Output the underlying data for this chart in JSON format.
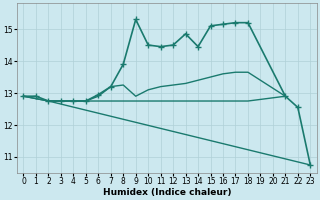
{
  "xlabel": "Humidex (Indice chaleur)",
  "bg_color": "#cce8ef",
  "grid_color": "#b0d0d8",
  "line_color": "#1a7a6e",
  "xlim": [
    -0.5,
    23.5
  ],
  "ylim": [
    10.5,
    15.8
  ],
  "yticks": [
    11,
    12,
    13,
    14,
    15
  ],
  "xticks": [
    0,
    1,
    2,
    3,
    4,
    5,
    6,
    7,
    8,
    9,
    10,
    11,
    12,
    13,
    14,
    15,
    16,
    17,
    18,
    19,
    20,
    21,
    22,
    23
  ],
  "series": [
    {
      "x": [
        0,
        1,
        2,
        3,
        4,
        5,
        6,
        7,
        8,
        9,
        10,
        11,
        12,
        13,
        14,
        15,
        16,
        17,
        18,
        21,
        22,
        23
      ],
      "y": [
        12.9,
        12.9,
        12.75,
        12.75,
        12.75,
        12.75,
        12.95,
        13.2,
        13.9,
        15.3,
        14.5,
        14.45,
        14.5,
        14.85,
        14.45,
        15.1,
        15.15,
        15.2,
        15.2,
        12.9,
        12.55,
        10.75
      ],
      "marker": "+",
      "markersize": 4,
      "linestyle": "-",
      "linewidth": 1.2
    },
    {
      "x": [
        0,
        2,
        3,
        4,
        5,
        6,
        7,
        8,
        9,
        10,
        11,
        12,
        13,
        14,
        15,
        16,
        17,
        18,
        21
      ],
      "y": [
        12.9,
        12.75,
        12.75,
        12.75,
        12.75,
        12.9,
        13.2,
        13.25,
        12.9,
        13.1,
        13.2,
        13.25,
        13.3,
        13.4,
        13.5,
        13.6,
        13.65,
        13.65,
        12.9
      ],
      "marker": null,
      "linestyle": "-",
      "linewidth": 1.0
    },
    {
      "x": [
        0,
        2,
        3,
        4,
        5,
        6,
        7,
        8,
        9,
        10,
        11,
        12,
        13,
        14,
        15,
        16,
        17,
        18,
        21
      ],
      "y": [
        12.9,
        12.75,
        12.75,
        12.75,
        12.75,
        12.75,
        12.75,
        12.75,
        12.75,
        12.75,
        12.75,
        12.75,
        12.75,
        12.75,
        12.75,
        12.75,
        12.75,
        12.75,
        12.9
      ],
      "marker": null,
      "linestyle": "-",
      "linewidth": 1.0
    },
    {
      "x": [
        2,
        23
      ],
      "y": [
        12.75,
        10.75
      ],
      "marker": null,
      "linestyle": "-",
      "linewidth": 1.0
    }
  ]
}
